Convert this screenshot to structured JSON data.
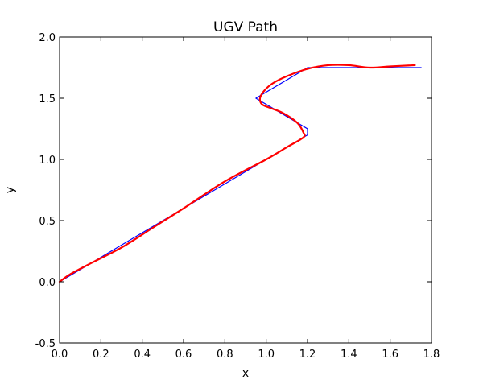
{
  "chart_data": {
    "type": "line",
    "title": "UGV Path",
    "xlabel": "x",
    "ylabel": "y",
    "xlim": [
      0.0,
      1.8
    ],
    "ylim": [
      -0.5,
      2.0
    ],
    "xticks": [
      "0.0",
      "0.2",
      "0.4",
      "0.6",
      "0.8",
      "1.0",
      "1.2",
      "1.4",
      "1.6",
      "1.8"
    ],
    "yticks": [
      "-0.5",
      "0.0",
      "0.5",
      "1.0",
      "1.5",
      "2.0"
    ],
    "grid": false,
    "legend": "none",
    "series": [
      {
        "color": "#0000ff",
        "points": [
          [
            0.0,
            0.0
          ],
          [
            1.2,
            1.2
          ],
          [
            1.2,
            1.25
          ],
          [
            0.95,
            1.5
          ],
          [
            1.2,
            1.75
          ],
          [
            1.75,
            1.75
          ]
        ]
      },
      {
        "color": "#ff0000",
        "points": [
          [
            0.0,
            0.0
          ],
          [
            0.05,
            0.06
          ],
          [
            0.15,
            0.15
          ],
          [
            0.3,
            0.28
          ],
          [
            0.45,
            0.44
          ],
          [
            0.6,
            0.6
          ],
          [
            0.8,
            0.82
          ],
          [
            1.0,
            1.0
          ],
          [
            1.1,
            1.1
          ],
          [
            1.18,
            1.18
          ],
          [
            1.18,
            1.22
          ],
          [
            1.15,
            1.3
          ],
          [
            1.08,
            1.38
          ],
          [
            1.02,
            1.42
          ],
          [
            0.98,
            1.45
          ],
          [
            0.97,
            1.5
          ],
          [
            0.99,
            1.56
          ],
          [
            1.03,
            1.62
          ],
          [
            1.1,
            1.68
          ],
          [
            1.2,
            1.74
          ],
          [
            1.3,
            1.77
          ],
          [
            1.4,
            1.77
          ],
          [
            1.5,
            1.75
          ],
          [
            1.6,
            1.76
          ],
          [
            1.72,
            1.77
          ]
        ]
      }
    ]
  }
}
